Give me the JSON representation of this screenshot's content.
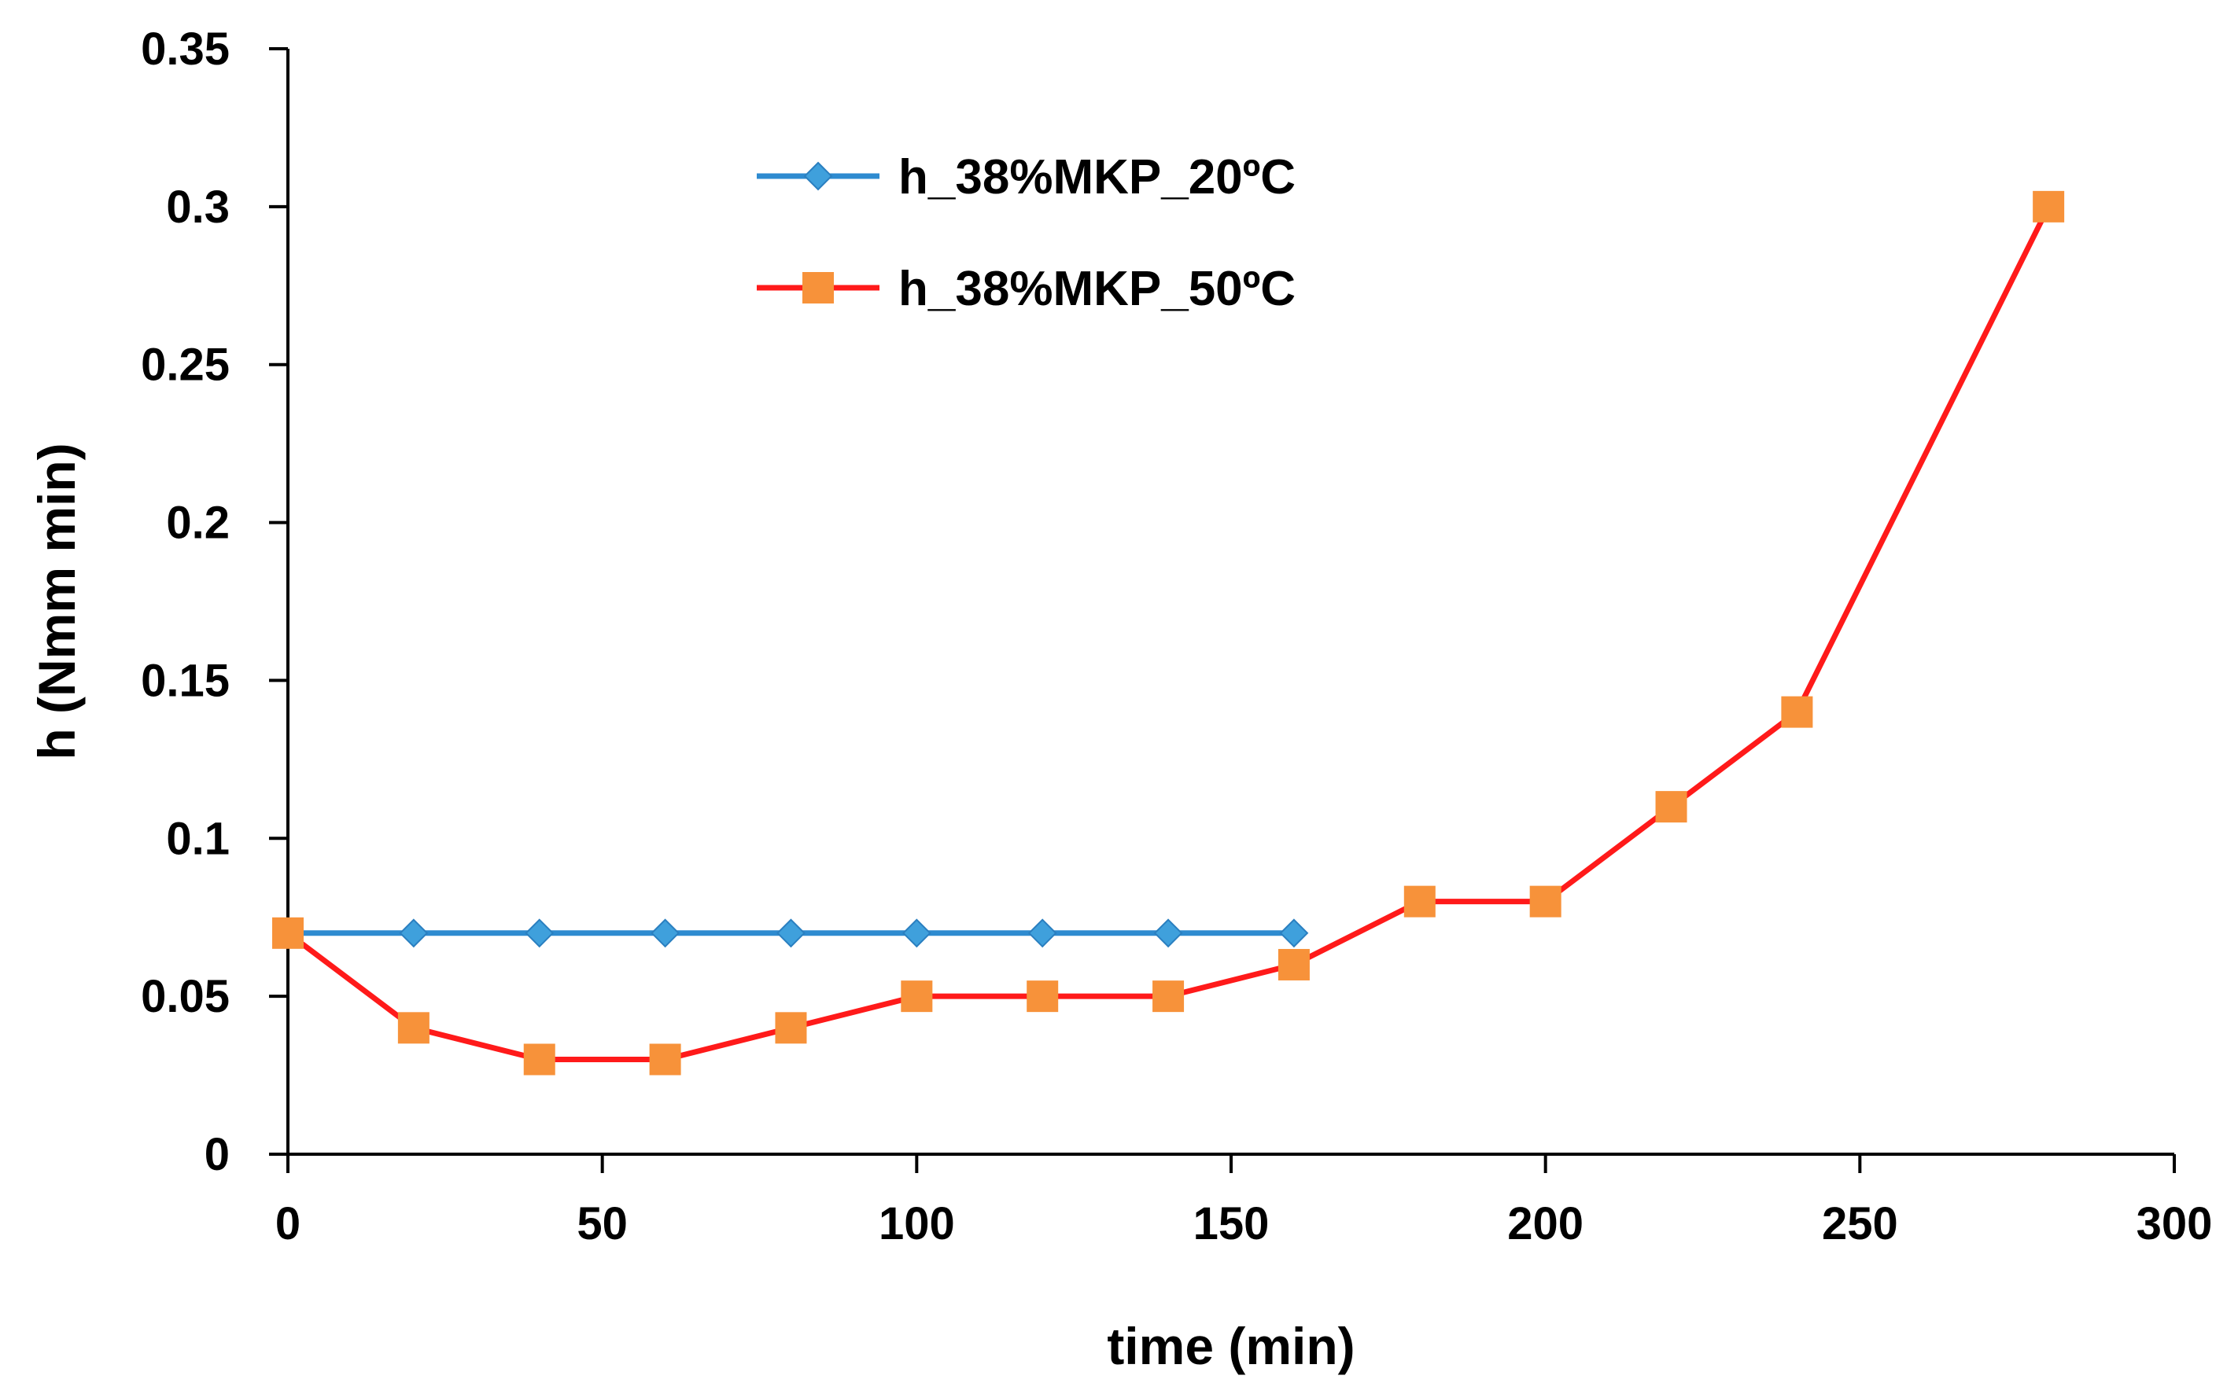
{
  "chart_data": {
    "type": "line",
    "title": "",
    "xlabel": "time (min)",
    "ylabel": "h (Nmm min)",
    "xlim": [
      0,
      300
    ],
    "ylim": [
      0,
      0.35
    ],
    "x_ticks": [
      0,
      50,
      100,
      150,
      200,
      250,
      300
    ],
    "y_ticks": [
      0,
      0.05,
      0.1,
      0.15,
      0.2,
      0.25,
      0.3,
      0.35
    ],
    "x_tick_labels": [
      "0",
      "50",
      "100",
      "150",
      "200",
      "250",
      "300"
    ],
    "y_tick_labels": [
      "0",
      "0.05",
      "0.1",
      "0.15",
      "0.2",
      "0.25",
      "0.3",
      "0.35"
    ],
    "grid": false,
    "legend_position": "top-center",
    "series": [
      {
        "name": "h_38%MKP_20ºC",
        "line_color": "#2E8BD0",
        "marker": "diamond",
        "marker_color": "#3FA0DC",
        "x": [
          0,
          20,
          40,
          60,
          80,
          100,
          120,
          140,
          160
        ],
        "y": [
          0.07,
          0.07,
          0.07,
          0.07,
          0.07,
          0.07,
          0.07,
          0.07,
          0.07
        ]
      },
      {
        "name": "h_38%MKP_50ºC",
        "line_color": "#FF1A1A",
        "marker": "square",
        "marker_color": "#F7923A",
        "x": [
          0,
          20,
          40,
          60,
          80,
          100,
          120,
          140,
          160,
          180,
          200,
          220,
          240,
          280
        ],
        "y": [
          0.07,
          0.04,
          0.03,
          0.03,
          0.04,
          0.05,
          0.05,
          0.05,
          0.06,
          0.08,
          0.08,
          0.11,
          0.14,
          0.3
        ]
      }
    ]
  }
}
